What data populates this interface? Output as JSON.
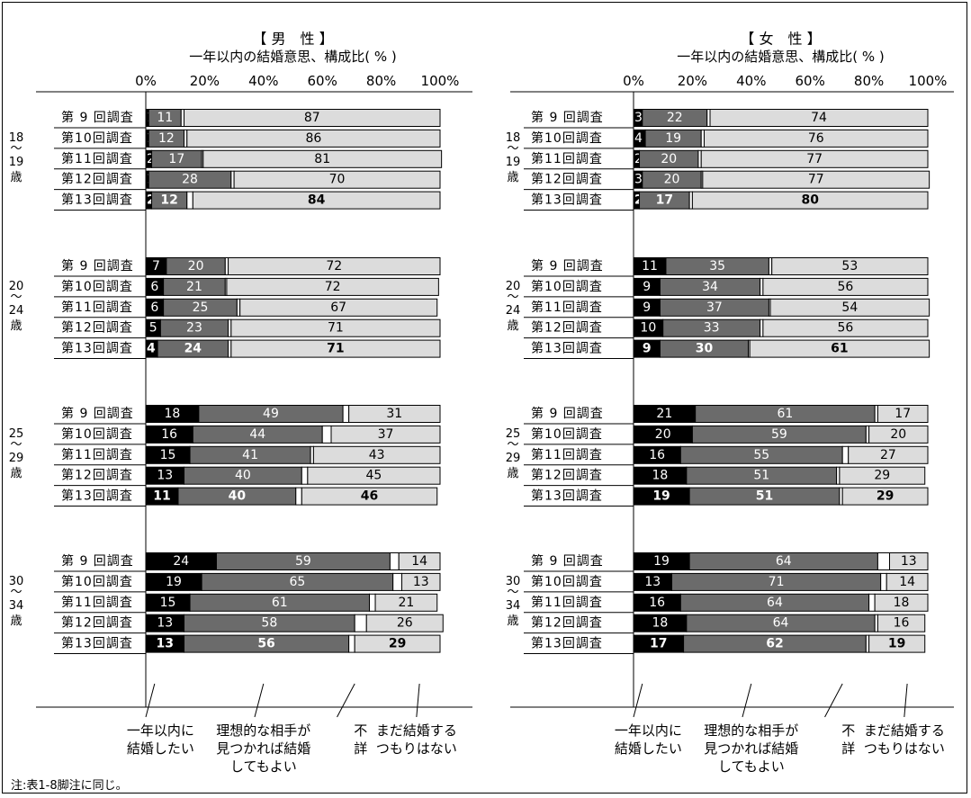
{
  "colors": {
    "want_within_year": "#000000",
    "ok_if_ideal_partner": "#6b6b6b",
    "unknown": "#ffffff",
    "not_intend_yet": "#dcdcdc",
    "bar_stroke": "#000000"
  },
  "footnote": "注:表1-8脚注に同じ。",
  "chart_data": [
    {
      "type": "bar",
      "orientation": "horizontal-stacked-percent",
      "title": "【 男　性 】",
      "subtitle": "一年以内の結婚意思、構成比( % )",
      "x_ticks": [
        "0%",
        "20%",
        "40%",
        "60%",
        "80%",
        "100%"
      ],
      "xlim": [
        0,
        100
      ],
      "series_names": [
        "一年以内に結婚したい",
        "理想的な相手が見つかれば結婚してもよい",
        "不詳",
        "まだ結婚するつもりはない"
      ],
      "legend_labels": [
        [
          "一年以内に",
          "結婚したい"
        ],
        [
          "理想的な相手が",
          "見つかれば結婚",
          "してもよい"
        ],
        [
          "不",
          "詳"
        ],
        [
          "まだ結婚する",
          "つもりはない"
        ]
      ],
      "groups": [
        {
          "age_label": [
            "18",
            "〜",
            "19",
            "歳"
          ],
          "rows": [
            {
              "survey": "第 9 回調査",
              "values": [
                1,
                11,
                1,
                87
              ]
            },
            {
              "survey": "第10回調査",
              "values": [
                1,
                12,
                1,
                86
              ]
            },
            {
              "survey": "第11回調査",
              "values": [
                2,
                17,
                0.5,
                81
              ]
            },
            {
              "survey": "第12回調査",
              "values": [
                1,
                28,
                1,
                70
              ]
            },
            {
              "survey": "第13回調査",
              "values": [
                2,
                12,
                2,
                84
              ],
              "bold": true
            }
          ]
        },
        {
          "age_label": [
            "20",
            "〜",
            "24",
            "歳"
          ],
          "rows": [
            {
              "survey": "第 9 回調査",
              "values": [
                7,
                20,
                1,
                72
              ]
            },
            {
              "survey": "第10回調査",
              "values": [
                6,
                21,
                0.5,
                72
              ]
            },
            {
              "survey": "第11回調査",
              "values": [
                6,
                25,
                1,
                67
              ]
            },
            {
              "survey": "第12回調査",
              "values": [
                5,
                23,
                1,
                71
              ]
            },
            {
              "survey": "第13回調査",
              "values": [
                4,
                24,
                1,
                71
              ],
              "bold": true
            }
          ]
        },
        {
          "age_label": [
            "25",
            "〜",
            "29",
            "歳"
          ],
          "rows": [
            {
              "survey": "第 9 回調査",
              "values": [
                18,
                49,
                2,
                31
              ]
            },
            {
              "survey": "第10回調査",
              "values": [
                16,
                44,
                3,
                37
              ]
            },
            {
              "survey": "第11回調査",
              "values": [
                15,
                41,
                1,
                43
              ]
            },
            {
              "survey": "第12回調査",
              "values": [
                13,
                40,
                2,
                45
              ]
            },
            {
              "survey": "第13回調査",
              "values": [
                11,
                40,
                2,
                46
              ],
              "bold": true
            }
          ]
        },
        {
          "age_label": [
            "30",
            "〜",
            "34",
            "歳"
          ],
          "rows": [
            {
              "survey": "第 9 回調査",
              "values": [
                24,
                59,
                3,
                14
              ]
            },
            {
              "survey": "第10回調査",
              "values": [
                19,
                65,
                3,
                13
              ]
            },
            {
              "survey": "第11回調査",
              "values": [
                15,
                61,
                2,
                21
              ]
            },
            {
              "survey": "第12回調査",
              "values": [
                13,
                58,
                4,
                26
              ]
            },
            {
              "survey": "第13回調査",
              "values": [
                13,
                56,
                2,
                29
              ],
              "bold": true
            }
          ]
        }
      ]
    },
    {
      "type": "bar",
      "orientation": "horizontal-stacked-percent",
      "title": "【 女　性 】",
      "subtitle": "一年以内の結婚意思、構成比( % )",
      "x_ticks": [
        "0%",
        "20%",
        "40%",
        "60%",
        "80%",
        "100%"
      ],
      "xlim": [
        0,
        100
      ],
      "series_names": [
        "一年以内に結婚したい",
        "理想的な相手が見つかれば結婚してもよい",
        "不詳",
        "まだ結婚するつもりはない"
      ],
      "legend_labels": [
        [
          "一年以内に",
          "結婚したい"
        ],
        [
          "理想的な相手が",
          "見つかれば結婚",
          "してもよい"
        ],
        [
          "不",
          "詳"
        ],
        [
          "まだ結婚する",
          "つもりはない"
        ]
      ],
      "groups": [
        {
          "age_label": [
            "18",
            "〜",
            "19",
            "歳"
          ],
          "rows": [
            {
              "survey": "第 9 回調査",
              "values": [
                3,
                22,
                1,
                74
              ]
            },
            {
              "survey": "第10回調査",
              "values": [
                4,
                19,
                1,
                76
              ]
            },
            {
              "survey": "第11回調査",
              "values": [
                2,
                20,
                1,
                77
              ]
            },
            {
              "survey": "第12回調査",
              "values": [
                3,
                20,
                0.5,
                77
              ]
            },
            {
              "survey": "第13回調査",
              "values": [
                2,
                17,
                1,
                80
              ],
              "bold": true
            }
          ]
        },
        {
          "age_label": [
            "20",
            "〜",
            "24",
            "歳"
          ],
          "rows": [
            {
              "survey": "第 9 回調査",
              "values": [
                11,
                35,
                1,
                53
              ]
            },
            {
              "survey": "第10回調査",
              "values": [
                9,
                34,
                1,
                56
              ]
            },
            {
              "survey": "第11回調査",
              "values": [
                9,
                37,
                0.5,
                54
              ]
            },
            {
              "survey": "第12回調査",
              "values": [
                10,
                33,
                1,
                56
              ]
            },
            {
              "survey": "第13回調査",
              "values": [
                9,
                30,
                0.5,
                61
              ],
              "bold": true
            }
          ]
        },
        {
          "age_label": [
            "25",
            "〜",
            "29",
            "歳"
          ],
          "rows": [
            {
              "survey": "第 9 回調査",
              "values": [
                21,
                61,
                1,
                17
              ]
            },
            {
              "survey": "第10回調査",
              "values": [
                20,
                59,
                1,
                20
              ]
            },
            {
              "survey": "第11回調査",
              "values": [
                16,
                55,
                2,
                27
              ]
            },
            {
              "survey": "第12回調査",
              "values": [
                18,
                51,
                1,
                29
              ]
            },
            {
              "survey": "第13回調査",
              "values": [
                19,
                51,
                1,
                29
              ],
              "bold": true
            }
          ]
        },
        {
          "age_label": [
            "30",
            "〜",
            "34",
            "歳"
          ],
          "rows": [
            {
              "survey": "第 9 回調査",
              "values": [
                19,
                64,
                4,
                13
              ]
            },
            {
              "survey": "第10回調査",
              "values": [
                13,
                71,
                2,
                14
              ]
            },
            {
              "survey": "第11回調査",
              "values": [
                16,
                64,
                2,
                18
              ]
            },
            {
              "survey": "第12回調査",
              "values": [
                18,
                64,
                1,
                16
              ]
            },
            {
              "survey": "第13回調査",
              "values": [
                17,
                62,
                1,
                19
              ],
              "bold": true
            }
          ]
        }
      ]
    }
  ]
}
